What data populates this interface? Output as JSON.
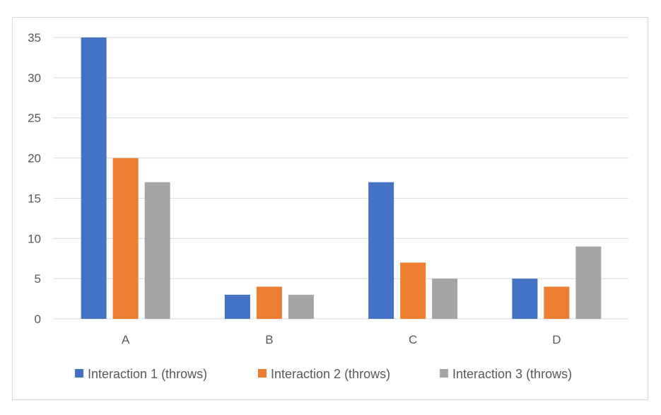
{
  "chart_data": {
    "type": "bar",
    "categories": [
      "A",
      "B",
      "C",
      "D"
    ],
    "series": [
      {
        "name": "Interaction 1 (throws)",
        "values": [
          35,
          3,
          17,
          5
        ],
        "color": "#4472c4"
      },
      {
        "name": "Interaction 2 (throws)",
        "values": [
          20,
          4,
          7,
          4
        ],
        "color": "#ed7d31"
      },
      {
        "name": "Interaction 3 (throws)",
        "values": [
          17,
          3,
          5,
          9
        ],
        "color": "#a5a5a5"
      }
    ],
    "ylim": [
      0,
      35
    ],
    "yticks": [
      0,
      5,
      10,
      15,
      20,
      25,
      30,
      35
    ],
    "grid": true,
    "legend": "bottom",
    "colors": {
      "grid": "#d9d9d9",
      "axis": "#d9d9d9",
      "text": "#595959"
    }
  }
}
